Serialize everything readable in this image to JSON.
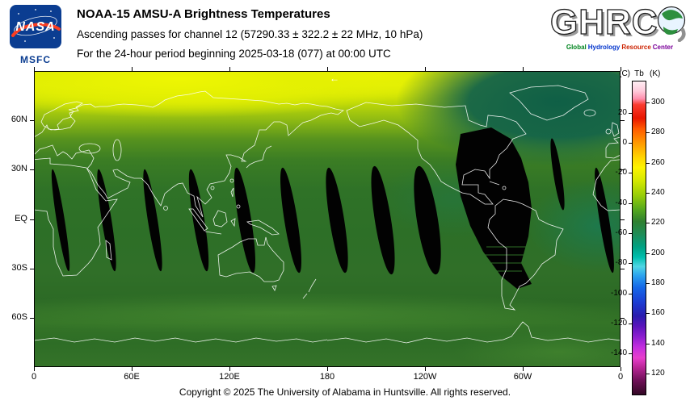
{
  "header": {
    "title": "NOAA-15 AMSU-A Brightness Temperatures",
    "subtitle": "Ascending passes for channel 12 (57290.33 ± 322.2 ± 22 MHz, 10 hPa)",
    "period_line": "For the 24-hour period beginning 2025-03-18 (077) at 00:00 UTC",
    "nasa": {
      "acronym": "NASA",
      "center": "MSFC"
    },
    "ghrc": {
      "acronym": "GHRC",
      "tagline": [
        {
          "word": "Global",
          "color": "#00851f"
        },
        {
          "word": "Hydrology",
          "color": "#0033cc"
        },
        {
          "word": "Resource",
          "color": "#cc2200"
        },
        {
          "word": "Center",
          "color": "#7a0099"
        }
      ]
    }
  },
  "map": {
    "direction_arrow": "←",
    "lat_ticks": [
      {
        "label": "60N",
        "lat": 60
      },
      {
        "label": "30N",
        "lat": 30
      },
      {
        "label": "EQ",
        "lat": 0
      },
      {
        "label": "30S",
        "lat": -30
      },
      {
        "label": "60S",
        "lat": -60
      }
    ],
    "lon_ticks": [
      {
        "label": "0",
        "lon": 0
      },
      {
        "label": "60E",
        "lon": 60
      },
      {
        "label": "120E",
        "lon": 120
      },
      {
        "label": "180",
        "lon": 180
      },
      {
        "label": "120W",
        "lon": 240
      },
      {
        "label": "60W",
        "lon": 300
      },
      {
        "label": "0",
        "lon": 360
      }
    ]
  },
  "colorbar": {
    "unit_left": "(C)",
    "quantity": "Tb",
    "unit_right": "(K)",
    "kelvin_ticks": [
      300,
      280,
      260,
      240,
      220,
      200,
      180,
      160,
      140,
      120
    ],
    "celsius_ticks": [
      20,
      0,
      -20,
      -40,
      -60,
      -80,
      -100,
      -120,
      -140
    ],
    "scale": {
      "k_top": 314.5,
      "k_bottom": 105.5
    },
    "stops": [
      {
        "k": 314.5,
        "color": "#ffeef4"
      },
      {
        "k": 308,
        "color": "#ffc9da"
      },
      {
        "k": 303,
        "color": "#ff8fae"
      },
      {
        "k": 299,
        "color": "#fa3c30"
      },
      {
        "k": 290,
        "color": "#e81600"
      },
      {
        "k": 283,
        "color": "#ff5a00"
      },
      {
        "k": 273,
        "color": "#ff9c00"
      },
      {
        "k": 264,
        "color": "#ffd400"
      },
      {
        "k": 257,
        "color": "#fdf400"
      },
      {
        "k": 248,
        "color": "#d3e800"
      },
      {
        "k": 238,
        "color": "#95cc08"
      },
      {
        "k": 229,
        "color": "#55a81e"
      },
      {
        "k": 221,
        "color": "#2f8030"
      },
      {
        "k": 212,
        "color": "#1d8d59"
      },
      {
        "k": 204,
        "color": "#00a183"
      },
      {
        "k": 197,
        "color": "#00bfae"
      },
      {
        "k": 191,
        "color": "#4fd6e4"
      },
      {
        "k": 185,
        "color": "#2ba3ee"
      },
      {
        "k": 177,
        "color": "#1568e8"
      },
      {
        "k": 167,
        "color": "#1c3cd2"
      },
      {
        "k": 158,
        "color": "#2a1cae"
      },
      {
        "k": 151,
        "color": "#5a14bc"
      },
      {
        "k": 144,
        "color": "#8d1ed0"
      },
      {
        "k": 137,
        "color": "#c32ede"
      },
      {
        "k": 130,
        "color": "#e83ecc"
      },
      {
        "k": 123,
        "color": "#b42492"
      },
      {
        "k": 115,
        "color": "#6f1058"
      },
      {
        "k": 105.5,
        "color": "#320824"
      }
    ]
  },
  "footer": {
    "copyright": "Copyright © 2025 The University of Alabama in Huntsville. All rights reserved."
  }
}
